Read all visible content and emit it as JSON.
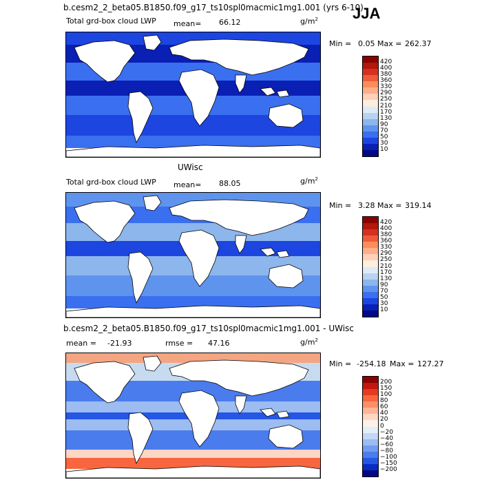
{
  "season": "JJA",
  "panels": [
    {
      "title": "b.cesm2_2_beta05.B1850.f09_g17_ts10spl0macmic1mg1.001 (yrs 6-10)",
      "subtitle": "Total grd-box cloud LWP",
      "mean_text": "mean=",
      "mean_value": "66.12",
      "units": "g/m",
      "units_sup": "2",
      "min_label": "Min =",
      "min_value": "0.05",
      "max_label": "Max =",
      "max_value": "262.37",
      "colorbar_labels": [
        "420",
        "400",
        "380",
        "360",
        "330",
        "290",
        "250",
        "210",
        "170",
        "130",
        "90",
        "70",
        "50",
        "30",
        "10"
      ]
    },
    {
      "title": "UWisc",
      "subtitle": "Total grd-box cloud LWP",
      "mean_text": "mean=",
      "mean_value": "88.05",
      "units": "g/m",
      "units_sup": "2",
      "min_label": "Min =",
      "min_value": "3.28",
      "max_label": "Max =",
      "max_value": "319.14",
      "colorbar_labels": [
        "420",
        "400",
        "380",
        "360",
        "330",
        "290",
        "250",
        "210",
        "170",
        "130",
        "90",
        "70",
        "50",
        "30",
        "10"
      ]
    },
    {
      "title": "b.cesm2_2_beta05.B1850.f09_g17_ts10spl0macmic1mg1.001 - UWisc",
      "mean_text": "mean =",
      "mean_value": "-21.93",
      "rmse_text": "rmse =",
      "rmse_value": "47.16",
      "units": "g/m",
      "units_sup": "2",
      "min_label": "Min =",
      "min_value": "-254.18",
      "max_label": "Max =",
      "max_value": "127.27",
      "colorbar_labels": [
        "200",
        "150",
        "100",
        "80",
        "60",
        "40",
        "20",
        "0",
        "−20",
        "−40",
        "−60",
        "−80",
        "−100",
        "−150",
        "−200"
      ]
    }
  ],
  "colors": {
    "abs_scale": [
      "#8b0000",
      "#b2180b",
      "#d7301f",
      "#ef5b3c",
      "#fc8d59",
      "#fdae8b",
      "#fdd0b8",
      "#fdeede",
      "#deebf7",
      "#b8d3f0",
      "#8cb6ec",
      "#5f94ee",
      "#3a6ff0",
      "#1d45e0",
      "#0a1fb4",
      "#000a85"
    ],
    "diff_scale": [
      "#8b0000",
      "#c4150f",
      "#e63b1f",
      "#f7663f",
      "#fb8f67",
      "#fdb597",
      "#fdd6c4",
      "#fdf1e9",
      "#e3eefb",
      "#c3d7f6",
      "#9cbcf2",
      "#719df0",
      "#4a7cee",
      "#2556e6",
      "#0a2bc2",
      "#000a85"
    ],
    "land": "#ffffff",
    "ocean_high": "#0c27c7",
    "ocean_mid": "#3a6ff0",
    "ocean_low": "#8cb6ec"
  }
}
